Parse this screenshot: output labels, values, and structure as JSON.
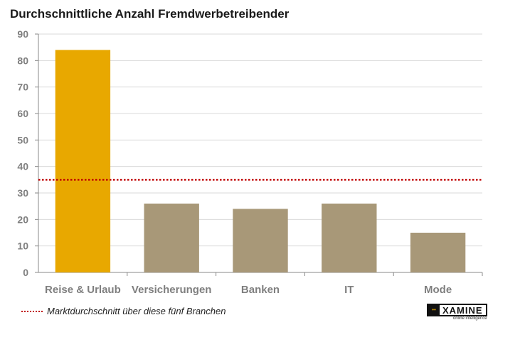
{
  "chart_data": {
    "type": "bar",
    "title": "Durchschnittliche Anzahl Fremdwerbetreibender",
    "categories": [
      "Reise & Urlaub",
      "Versicherungen",
      "Banken",
      "IT",
      "Mode"
    ],
    "values": [
      84,
      26,
      24,
      26,
      15
    ],
    "colors": [
      "#e8a800",
      "#a89878",
      "#a89878",
      "#a89878",
      "#a89878"
    ],
    "ylim": [
      0,
      90
    ],
    "yticks": [
      0,
      10,
      20,
      30,
      40,
      50,
      60,
      70,
      80,
      90
    ],
    "grid": true,
    "reference_line": {
      "value": 35,
      "color": "#c00000",
      "label": "Marktdurchschnitt über diese fünf Branchen"
    },
    "legend_position": "bottom-left"
  },
  "logo": {
    "text": "XAMINE",
    "tagline": "online intelligence"
  }
}
